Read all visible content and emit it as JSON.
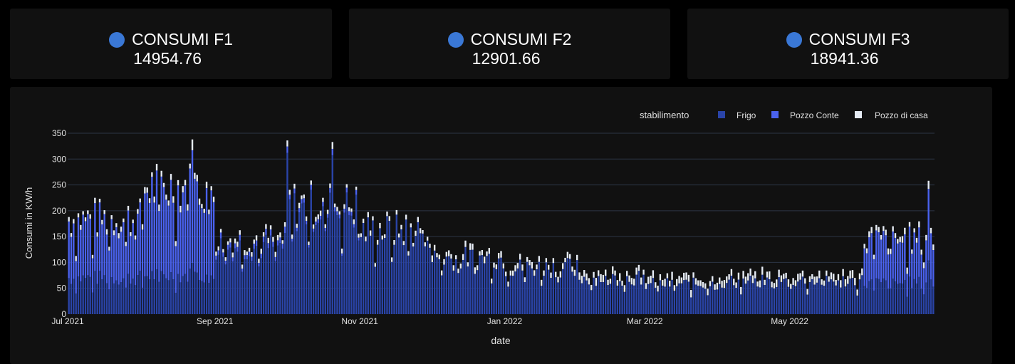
{
  "kpis": [
    {
      "title": "CONSUMI F1",
      "value": "14954.76",
      "color": "#3a78d6"
    },
    {
      "title": "CONSUMI F2",
      "value": "12901.66",
      "color": "#3a78d6"
    },
    {
      "title": "CONSUMI F3",
      "value": "18941.36",
      "color": "#3a78d6"
    }
  ],
  "chart_data": {
    "type": "bar",
    "stacked": true,
    "xlabel": "date",
    "ylabel": "Consumi in KW/h",
    "ylim": [
      0,
      350
    ],
    "yticks": [
      0,
      50,
      100,
      150,
      200,
      250,
      300,
      350
    ],
    "xrange": [
      "2021-07-01",
      "2022-06-30"
    ],
    "xticks": [
      {
        "date": "2021-07-01",
        "label": "Jul 2021"
      },
      {
        "date": "2021-09-01",
        "label": "Sep 2021"
      },
      {
        "date": "2021-11-01",
        "label": "Nov 2021"
      },
      {
        "date": "2022-01-01",
        "label": "Jan 2022"
      },
      {
        "date": "2022-03-01",
        "label": "Mar 2022"
      },
      {
        "date": "2022-05-01",
        "label": "May 2022"
      }
    ],
    "grid": true,
    "legend": {
      "title": "stabilimento",
      "position": "top-right"
    },
    "series": [
      {
        "name": "Frigo",
        "color": "#2a44a8"
      },
      {
        "name": "Pozzo Conte",
        "color": "#4a62ef"
      },
      {
        "name": "Pozzo di casa",
        "color": "#e6ecf5"
      }
    ],
    "monthly_daily_totals": [
      {
        "month": "2021-07",
        "Frigo": 70,
        "Pozzo Conte": 110,
        "Pozzo di casa": 8
      },
      {
        "month": "2021-08",
        "Frigo": 75,
        "Pozzo Conte": 165,
        "Pozzo di casa": 10
      },
      {
        "month": "2021-09",
        "Frigo": 130,
        "Pozzo Conte": 10,
        "Pozzo di casa": 8
      },
      {
        "month": "2021-10",
        "Frigo": 200,
        "Pozzo Conte": 8,
        "Pozzo di casa": 8
      },
      {
        "month": "2021-11",
        "Frigo": 160,
        "Pozzo Conte": 0,
        "Pozzo di casa": 8
      },
      {
        "month": "2021-12",
        "Frigo": 108,
        "Pozzo Conte": 0,
        "Pozzo di casa": 10
      },
      {
        "month": "2022-01",
        "Frigo": 90,
        "Pozzo Conte": 0,
        "Pozzo di casa": 10
      },
      {
        "month": "2022-02",
        "Frigo": 70,
        "Pozzo Conte": 0,
        "Pozzo di casa": 12
      },
      {
        "month": "2022-03",
        "Frigo": 58,
        "Pozzo Conte": 0,
        "Pozzo di casa": 12
      },
      {
        "month": "2022-04",
        "Frigo": 63,
        "Pozzo Conte": 0,
        "Pozzo di casa": 12
      },
      {
        "month": "2022-05",
        "Frigo": 65,
        "Pozzo Conte": 0,
        "Pozzo di casa": 12
      },
      {
        "month": "2022-06",
        "Frigo": 60,
        "Pozzo Conte": 80,
        "Pozzo di casa": 10
      }
    ],
    "peaks": [
      {
        "date": "2021-08-22",
        "total": 338
      },
      {
        "date": "2021-10-01",
        "total": 336
      },
      {
        "date": "2021-10-20",
        "total": 333
      },
      {
        "date": "2022-06-28",
        "total": 258
      }
    ]
  }
}
